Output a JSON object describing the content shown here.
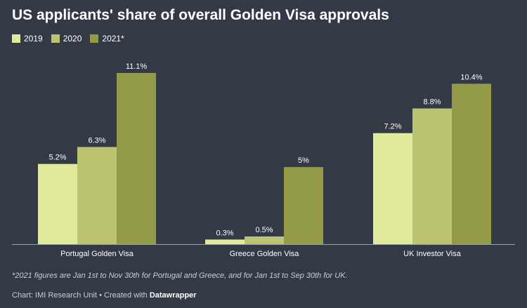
{
  "title": "US applicants' share of overall Golden Visa approvals",
  "note": "*2021 figures are Jan 1st to Nov 30th for Portugal and Greece, and for Jan 1st to Sep 30th for UK.",
  "source": {
    "prefix": "Chart: IMI Research Unit • Created with ",
    "brand": "Datawrapper"
  },
  "colors": {
    "background": "#343a45",
    "series": [
      "#e1e99a",
      "#bdc46f",
      "#929a48"
    ],
    "axis": "#9aa0a8"
  },
  "chart_data": {
    "type": "bar",
    "categories": [
      "Portugal Golden Visa",
      "Greece Golden Visa",
      "UK Investor Visa"
    ],
    "series": [
      {
        "name": "2019",
        "values": [
          5.2,
          0.3,
          7.2
        ],
        "labels": [
          "5.2%",
          "0.3%",
          "7.2%"
        ]
      },
      {
        "name": "2020",
        "values": [
          6.3,
          0.5,
          8.8
        ],
        "labels": [
          "6.3%",
          "0.5%",
          "8.8%"
        ]
      },
      {
        "name": "2021*",
        "values": [
          11.1,
          5,
          10.4
        ],
        "labels": [
          "11.1%",
          "5%",
          "10.4%"
        ]
      }
    ],
    "ylim": [
      0,
      11.1
    ],
    "legend": "top-left",
    "grid": false
  }
}
